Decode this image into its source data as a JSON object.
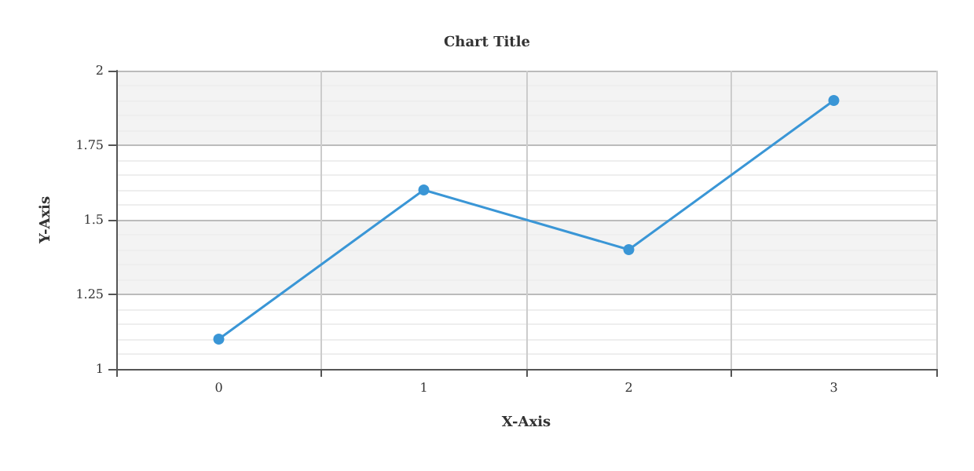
{
  "chart_data": {
    "type": "line",
    "title": "Chart Title",
    "xlabel": "X-Axis",
    "ylabel": "Y-Axis",
    "categories": [
      "0",
      "1",
      "2",
      "3"
    ],
    "series": [
      {
        "color": "#3a96d6",
        "values": [
          1.1,
          1.6,
          1.4,
          1.9
        ]
      }
    ],
    "ylim": [
      1,
      2
    ],
    "yticks": [
      1,
      1.25,
      1.5,
      1.75,
      2
    ],
    "grid": true,
    "marker": "circle",
    "line_style": "solid"
  }
}
